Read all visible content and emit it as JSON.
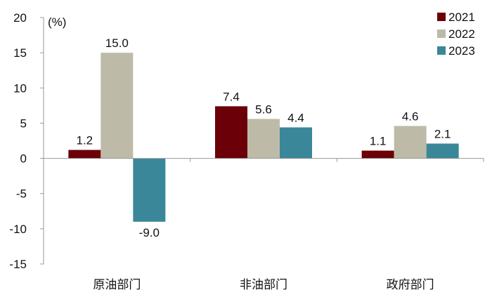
{
  "chart_data": {
    "type": "bar",
    "title": "",
    "unit_label": "(%)",
    "xlabel": "",
    "ylabel": "",
    "categories": [
      "原油部门",
      "非油部门",
      "政府部门"
    ],
    "series": [
      {
        "name": "2021",
        "color": "#6b0008",
        "values": [
          1.2,
          7.4,
          1.1
        ],
        "labels": [
          "1.2",
          "7.4",
          "1.1"
        ]
      },
      {
        "name": "2022",
        "color": "#bdbaa8",
        "values": [
          15.0,
          5.6,
          4.6
        ],
        "labels": [
          "15.0",
          "5.6",
          "4.6"
        ]
      },
      {
        "name": "2023",
        "color": "#3a8799",
        "values": [
          -9.0,
          4.4,
          2.1
        ],
        "labels": [
          "-9.0",
          "4.4",
          "2.1"
        ]
      }
    ],
    "ylim": [
      -15,
      20
    ],
    "yticks": [
      20,
      15,
      10,
      5,
      0,
      -5,
      -10,
      -15
    ],
    "ytick_labels": [
      "20",
      "15",
      "10",
      "5",
      "0",
      "-5",
      "-10",
      "-15"
    ],
    "grid": false,
    "legend_position": "top-right"
  }
}
